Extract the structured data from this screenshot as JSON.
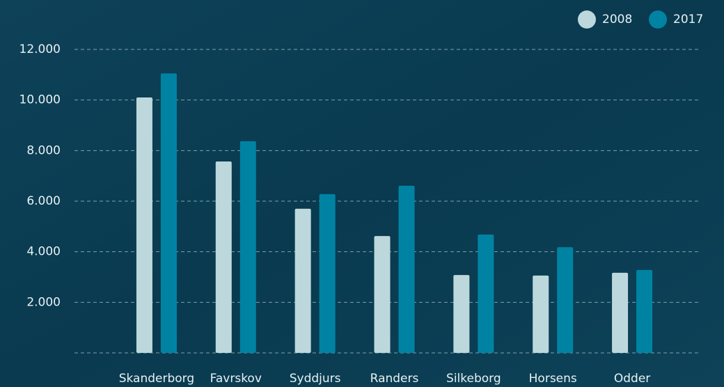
{
  "chart_data": {
    "type": "bar",
    "categories": [
      "Skanderborg",
      "Favrskov",
      "Syddjurs",
      "Randers",
      "Silkeborg",
      "Horsens",
      "Odder"
    ],
    "series": [
      {
        "name": "2008",
        "color": "#bcd8dc",
        "values": [
          10100,
          7570,
          5700,
          4620,
          3080,
          3060,
          3170
        ]
      },
      {
        "name": "2017",
        "color": "#0083a3",
        "values": [
          11050,
          8370,
          6280,
          6610,
          4680,
          4180,
          3280
        ]
      }
    ],
    "ylim": [
      0,
      12000
    ],
    "yticks": [
      {
        "value": 2000,
        "label": "2.000"
      },
      {
        "value": 4000,
        "label": "4.000"
      },
      {
        "value": 6000,
        "label": "6.000"
      },
      {
        "value": 8000,
        "label": "8.000"
      },
      {
        "value": 10000,
        "label": "10.000"
      },
      {
        "value": 12000,
        "label": "12.000"
      }
    ],
    "grid": true,
    "legend": "top-right"
  }
}
